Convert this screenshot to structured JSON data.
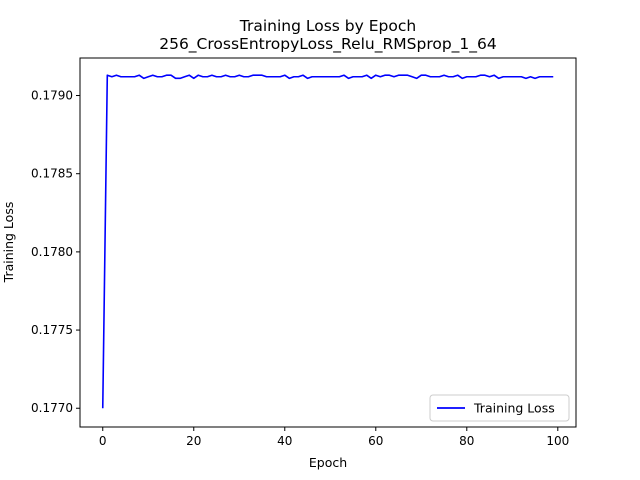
{
  "chart_data": {
    "type": "line",
    "title": "Training Loss by Epoch",
    "subtitle": "256_CrossEntropyLoss_Relu_RMSprop_1_64",
    "xlabel": "Epoch",
    "ylabel": "Training Loss",
    "xlim": [
      -5,
      104
    ],
    "ylim": [
      0.17688,
      0.17924
    ],
    "xticks": [
      0,
      20,
      40,
      60,
      80,
      100
    ],
    "xtick_labels": [
      "0",
      "20",
      "40",
      "60",
      "80",
      "100"
    ],
    "yticks": [
      0.177,
      0.1775,
      0.178,
      0.1785,
      0.179
    ],
    "ytick_labels": [
      "0.1770",
      "0.1775",
      "0.1780",
      "0.1785",
      "0.1790"
    ],
    "grid": false,
    "legend_position": "lower-right",
    "series": [
      {
        "name": "Training Loss",
        "color": "#0000ff",
        "x": [
          0,
          1,
          2,
          3,
          4,
          5,
          6,
          7,
          8,
          9,
          10,
          11,
          12,
          13,
          14,
          15,
          16,
          17,
          18,
          19,
          20,
          21,
          22,
          23,
          24,
          25,
          26,
          27,
          28,
          29,
          30,
          31,
          32,
          33,
          34,
          35,
          36,
          37,
          38,
          39,
          40,
          41,
          42,
          43,
          44,
          45,
          46,
          47,
          48,
          49,
          50,
          51,
          52,
          53,
          54,
          55,
          56,
          57,
          58,
          59,
          60,
          61,
          62,
          63,
          64,
          65,
          66,
          67,
          68,
          69,
          70,
          71,
          72,
          73,
          74,
          75,
          76,
          77,
          78,
          79,
          80,
          81,
          82,
          83,
          84,
          85,
          86,
          87,
          88,
          89,
          90,
          91,
          92,
          93,
          94,
          95,
          96,
          97,
          98,
          99
        ],
        "values": [
          0.177,
          0.17913,
          0.17912,
          0.17913,
          0.17912,
          0.17912,
          0.17912,
          0.17912,
          0.17913,
          0.17911,
          0.17912,
          0.17913,
          0.17912,
          0.17912,
          0.17913,
          0.17913,
          0.17911,
          0.17911,
          0.17912,
          0.17913,
          0.17911,
          0.17913,
          0.17912,
          0.17912,
          0.17913,
          0.17912,
          0.17912,
          0.17913,
          0.17912,
          0.17912,
          0.17913,
          0.17912,
          0.17912,
          0.17913,
          0.17913,
          0.17913,
          0.17912,
          0.17912,
          0.17912,
          0.17912,
          0.17913,
          0.17911,
          0.17912,
          0.17912,
          0.17913,
          0.17911,
          0.17912,
          0.17912,
          0.17912,
          0.17912,
          0.17912,
          0.17912,
          0.17912,
          0.17913,
          0.17911,
          0.17912,
          0.17912,
          0.17912,
          0.17913,
          0.17911,
          0.17913,
          0.17912,
          0.17913,
          0.17913,
          0.17912,
          0.17913,
          0.17913,
          0.17913,
          0.17912,
          0.17911,
          0.17913,
          0.17913,
          0.17912,
          0.17912,
          0.17912,
          0.17913,
          0.17912,
          0.17912,
          0.17913,
          0.17911,
          0.17912,
          0.17912,
          0.17912,
          0.17913,
          0.17913,
          0.17912,
          0.17913,
          0.17911,
          0.17912,
          0.17912,
          0.17912,
          0.17912,
          0.17912,
          0.17911,
          0.17912,
          0.17911,
          0.17912,
          0.17912,
          0.17912,
          0.17912
        ]
      }
    ]
  }
}
